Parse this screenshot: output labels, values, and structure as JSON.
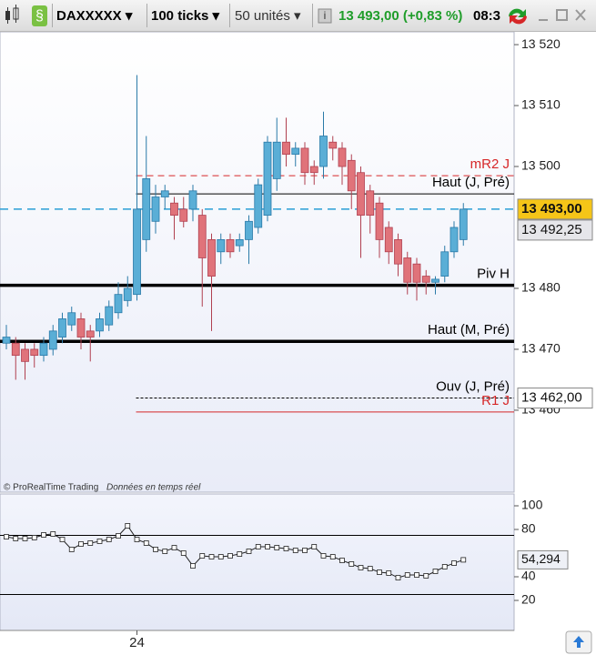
{
  "toolbar": {
    "symbol": "DAXXXXX",
    "interval": "100 ticks",
    "units": "50 unités",
    "quote": "13 493,00 (+0,83 %)",
    "time": "08:3"
  },
  "footer": {
    "copyright": "© ProRealTime Trading",
    "feed": "Données en temps réel"
  },
  "chart_data": [
    {
      "type": "candlestick",
      "categories": [
        null,
        null,
        null,
        null,
        null,
        null,
        null,
        null,
        null,
        null,
        null,
        null,
        null,
        null,
        "24",
        null,
        null,
        null,
        null,
        null,
        null,
        null,
        null,
        null,
        null,
        null,
        null,
        null,
        null,
        null,
        null,
        null,
        null,
        null,
        null,
        null,
        null,
        null,
        null,
        null,
        null,
        null,
        null,
        null,
        null,
        null,
        null,
        null,
        null,
        null
      ],
      "open": [
        13471,
        13471,
        13470,
        13470,
        13469,
        13470,
        13472,
        13474,
        13475,
        13473,
        13473,
        13474,
        13476,
        13478,
        13479,
        13488,
        13491,
        13495,
        13494,
        13493,
        13493,
        13492,
        13488,
        13486,
        13488,
        13487,
        13488,
        13490,
        13492,
        13498,
        13504,
        13502,
        13503,
        13500,
        13500,
        13504,
        13503,
        13501,
        13499,
        13496,
        13494,
        13490,
        13488,
        13485,
        13484,
        13482,
        13481,
        13482,
        13486,
        13488
      ],
      "high": [
        13474,
        13472,
        13471,
        13471,
        13472,
        13474,
        13476,
        13477,
        13476,
        13474,
        13476,
        13478,
        13481,
        13482,
        13515,
        13505,
        13497,
        13497,
        13495,
        13495,
        13497,
        13493,
        13489,
        13489,
        13489,
        13489,
        13492,
        13498,
        13505,
        13508,
        13508,
        13504,
        13504,
        13501,
        13509,
        13505,
        13504,
        13502,
        13500,
        13497,
        13495,
        13491,
        13489,
        13486,
        13485,
        13483,
        13482,
        13487,
        13491,
        13494
      ],
      "low": [
        13470,
        13465,
        13465,
        13467,
        13468,
        13469,
        13471,
        13473,
        13470,
        13468,
        13472,
        13473,
        13475,
        13477,
        13478,
        13486,
        13489,
        13493,
        13488,
        13490,
        13491,
        13477,
        13473,
        13484,
        13485,
        13486,
        13484,
        13489,
        13491,
        13496,
        13500,
        13500,
        13497,
        13497,
        13498,
        13501,
        13497,
        13493,
        13485,
        13489,
        13485,
        13484,
        13482,
        13479,
        13478,
        13479,
        13479,
        13481,
        13485,
        13487
      ],
      "close": [
        13472,
        13469,
        13468,
        13469,
        13471,
        13473,
        13475,
        13476,
        13472,
        13472,
        13475,
        13477,
        13479,
        13480,
        13493,
        13498,
        13495,
        13496,
        13492,
        13491,
        13496,
        13485,
        13482,
        13488,
        13486,
        13488,
        13491,
        13497,
        13504,
        13504,
        13502,
        13503,
        13499,
        13499,
        13505,
        13503,
        13500,
        13496,
        13492,
        13492,
        13488,
        13486,
        13484,
        13481,
        13481,
        13481,
        13481.5,
        13486,
        13490,
        13493
      ],
      "up_color": "#5aaed6",
      "down_color": "#e0737a",
      "ylim": [
        13446.7,
        13522.1
      ],
      "yticks": [
        {
          "value": 13460,
          "label": "13 460"
        },
        {
          "value": 13470,
          "label": "13 470"
        },
        {
          "value": 13480,
          "label": "13 480"
        },
        {
          "value": 13500,
          "label": "13 500"
        },
        {
          "value": 13510,
          "label": "13 510"
        },
        {
          "value": 13520,
          "label": "13 520"
        }
      ],
      "levels": [
        {
          "name": "mR2 J",
          "value": 13498.5,
          "style": "dashed",
          "color": "#d62728"
        },
        {
          "name": "Haut (J, Pré)",
          "value": 13495.5,
          "style": "solid",
          "color": "#000000"
        },
        {
          "name": "Piv H",
          "value": 13480.5,
          "style": "thick",
          "color": "#000000"
        },
        {
          "name": "Haut (M, Pré)",
          "value": 13471.3,
          "style": "thick",
          "color": "#000000"
        },
        {
          "name": "Ouv (J, Pré)",
          "value": 13462,
          "style": "dotted",
          "color": "#000000"
        },
        {
          "name": "R1 J",
          "value": 13459.7,
          "style": "solid",
          "color": "#d62728"
        }
      ],
      "price_line": {
        "value": 13493,
        "color": "#2a9fd6"
      },
      "markers": [
        {
          "value": 13493,
          "label": "13 493,00",
          "color": "#f5c518"
        },
        {
          "value": 13492.25,
          "label": "13 492,25",
          "color": "#e6e6ea"
        },
        {
          "value": 13462,
          "label": "13 462,00",
          "color": "#ffffff"
        }
      ]
    },
    {
      "type": "line",
      "values": [
        73.8,
        72.3,
        72.3,
        73.1,
        75.4,
        76.2,
        71.5,
        63.1,
        67.7,
        68.5,
        70,
        71.5,
        74.6,
        83.1,
        71.5,
        68.5,
        63.1,
        61.5,
        64.6,
        60,
        49.2,
        57.7,
        56.9,
        56.9,
        57.7,
        59.2,
        61.5,
        65.4,
        65.4,
        64.6,
        63.8,
        62.3,
        62.3,
        65.4,
        57.7,
        56.9,
        53.8,
        50.8,
        47.7,
        46.9,
        43.8,
        43.1,
        39.2,
        41.5,
        41.5,
        40.8,
        44.6,
        48.5,
        51.5,
        54.294
      ],
      "value_labels": [
        null,
        null,
        null,
        null,
        null,
        null,
        null,
        null,
        null,
        null,
        null,
        null,
        null,
        null,
        null,
        null,
        null,
        null,
        null,
        null,
        null,
        null,
        null,
        null,
        null,
        null,
        null,
        null,
        null,
        null,
        null,
        null,
        null,
        null,
        null,
        null,
        null,
        null,
        null,
        null,
        null,
        null,
        null,
        null,
        null,
        null,
        null,
        null,
        null,
        "54,294"
      ],
      "color": "#222222",
      "ylim": [
        -5.4,
        110
      ],
      "yticks": [
        20,
        40,
        80,
        100
      ],
      "levels": [
        75,
        25
      ]
    }
  ]
}
